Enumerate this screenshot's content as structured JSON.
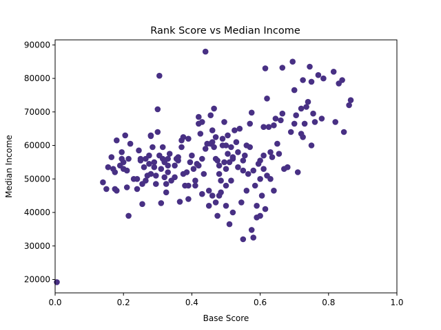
{
  "chart_data": {
    "type": "scatter",
    "title": "Rank Score vs Median Income",
    "xlabel": "Base Score",
    "ylabel": "Median Income",
    "xlim": [
      0,
      1
    ],
    "ylim": [
      16000,
      91500
    ],
    "xticks": [
      0.0,
      0.2,
      0.4,
      0.6,
      0.8,
      1.0
    ],
    "xtick_labels": [
      "0.0",
      "0.2",
      "0.4",
      "0.6",
      "0.8",
      "1.0"
    ],
    "yticks": [
      20000,
      30000,
      40000,
      50000,
      60000,
      70000,
      80000,
      90000
    ],
    "ytick_labels": [
      "20000",
      "30000",
      "40000",
      "50000",
      "60000",
      "70000",
      "80000",
      "90000"
    ],
    "grid": false,
    "marker_color": "#483084",
    "points": [
      [
        0.005,
        19200
      ],
      [
        0.14,
        49000
      ],
      [
        0.15,
        47000
      ],
      [
        0.155,
        53500
      ],
      [
        0.165,
        56500
      ],
      [
        0.17,
        53000
      ],
      [
        0.175,
        47000
      ],
      [
        0.175,
        52000
      ],
      [
        0.18,
        61500
      ],
      [
        0.18,
        46500
      ],
      [
        0.19,
        54000
      ],
      [
        0.195,
        56000
      ],
      [
        0.195,
        58000
      ],
      [
        0.2,
        53000
      ],
      [
        0.205,
        63000
      ],
      [
        0.21,
        47500
      ],
      [
        0.21,
        52500
      ],
      [
        0.215,
        39000
      ],
      [
        0.215,
        56000
      ],
      [
        0.22,
        60500
      ],
      [
        0.24,
        47000
      ],
      [
        0.24,
        50000
      ],
      [
        0.245,
        58500
      ],
      [
        0.25,
        56000
      ],
      [
        0.25,
        55500
      ],
      [
        0.255,
        48500
      ],
      [
        0.255,
        42500
      ],
      [
        0.26,
        53500
      ],
      [
        0.265,
        56000
      ],
      [
        0.265,
        49500
      ],
      [
        0.27,
        51000
      ],
      [
        0.275,
        54500
      ],
      [
        0.275,
        57000
      ],
      [
        0.28,
        63000
      ],
      [
        0.28,
        51500
      ],
      [
        0.285,
        59500
      ],
      [
        0.29,
        55000
      ],
      [
        0.29,
        53500
      ],
      [
        0.295,
        51000
      ],
      [
        0.295,
        48500
      ],
      [
        0.3,
        64000
      ],
      [
        0.3,
        70800
      ],
      [
        0.305,
        80800
      ],
      [
        0.305,
        57000
      ],
      [
        0.31,
        53000
      ],
      [
        0.31,
        42800
      ],
      [
        0.315,
        56000
      ],
      [
        0.315,
        59500
      ],
      [
        0.32,
        55000
      ],
      [
        0.32,
        50500
      ],
      [
        0.325,
        46000
      ],
      [
        0.325,
        48500
      ],
      [
        0.33,
        54000
      ],
      [
        0.33,
        52000
      ],
      [
        0.335,
        57500
      ],
      [
        0.34,
        49500
      ],
      [
        0.35,
        50500
      ],
      [
        0.35,
        54000
      ],
      [
        0.355,
        56000
      ],
      [
        0.36,
        55500
      ],
      [
        0.365,
        43200
      ],
      [
        0.37,
        59500
      ],
      [
        0.37,
        61500
      ],
      [
        0.375,
        62500
      ],
      [
        0.375,
        51500
      ],
      [
        0.38,
        48000
      ],
      [
        0.385,
        52000
      ],
      [
        0.39,
        44000
      ],
      [
        0.39,
        48000
      ],
      [
        0.395,
        55000
      ],
      [
        0.4,
        57000
      ],
      [
        0.405,
        53000
      ],
      [
        0.41,
        49500
      ],
      [
        0.41,
        48000
      ],
      [
        0.415,
        54500
      ],
      [
        0.42,
        68500
      ],
      [
        0.42,
        66500
      ],
      [
        0.425,
        63500
      ],
      [
        0.43,
        56000
      ],
      [
        0.43,
        45500
      ],
      [
        0.435,
        51500
      ],
      [
        0.44,
        88000
      ],
      [
        0.44,
        59000
      ],
      [
        0.445,
        60500
      ],
      [
        0.45,
        46500
      ],
      [
        0.45,
        42000
      ],
      [
        0.455,
        69000
      ],
      [
        0.455,
        60500
      ],
      [
        0.46,
        64500
      ],
      [
        0.46,
        61000
      ],
      [
        0.465,
        71000
      ],
      [
        0.465,
        59500
      ],
      [
        0.47,
        62500
      ],
      [
        0.47,
        56000
      ],
      [
        0.47,
        43000
      ],
      [
        0.475,
        55500
      ],
      [
        0.475,
        39000
      ],
      [
        0.48,
        54000
      ],
      [
        0.48,
        51500
      ],
      [
        0.485,
        49500
      ],
      [
        0.485,
        46000
      ],
      [
        0.49,
        62000
      ],
      [
        0.49,
        60000
      ],
      [
        0.495,
        67000
      ],
      [
        0.495,
        55000
      ],
      [
        0.5,
        53000
      ],
      [
        0.5,
        48000
      ],
      [
        0.5,
        42000
      ],
      [
        0.505,
        63000
      ],
      [
        0.505,
        57500
      ],
      [
        0.51,
        55000
      ],
      [
        0.51,
        36500
      ],
      [
        0.515,
        59500
      ],
      [
        0.515,
        49500
      ],
      [
        0.52,
        56500
      ],
      [
        0.52,
        40000
      ],
      [
        0.525,
        64500
      ],
      [
        0.53,
        61000
      ],
      [
        0.535,
        58000
      ],
      [
        0.535,
        53500
      ],
      [
        0.54,
        65000
      ],
      [
        0.545,
        43000
      ],
      [
        0.55,
        55500
      ],
      [
        0.55,
        32000
      ],
      [
        0.555,
        57000
      ],
      [
        0.56,
        46500
      ],
      [
        0.565,
        51500
      ],
      [
        0.57,
        66500
      ],
      [
        0.57,
        59500
      ],
      [
        0.575,
        69800
      ],
      [
        0.575,
        34800
      ],
      [
        0.58,
        32500
      ],
      [
        0.58,
        52500
      ],
      [
        0.585,
        48000
      ],
      [
        0.59,
        38500
      ],
      [
        0.595,
        54500
      ],
      [
        0.6,
        55500
      ],
      [
        0.6,
        50000
      ],
      [
        0.605,
        45000
      ],
      [
        0.61,
        65500
      ],
      [
        0.61,
        53000
      ],
      [
        0.615,
        83000
      ],
      [
        0.615,
        41000
      ],
      [
        0.62,
        74000
      ],
      [
        0.625,
        65500
      ],
      [
        0.63,
        58000
      ],
      [
        0.63,
        50000
      ],
      [
        0.635,
        56500
      ],
      [
        0.64,
        66000
      ],
      [
        0.64,
        46500
      ],
      [
        0.645,
        68000
      ],
      [
        0.65,
        60500
      ],
      [
        0.655,
        57500
      ],
      [
        0.66,
        67500
      ],
      [
        0.665,
        69500
      ],
      [
        0.665,
        83200
      ],
      [
        0.68,
        53500
      ],
      [
        0.69,
        64000
      ],
      [
        0.695,
        85000
      ],
      [
        0.7,
        76500
      ],
      [
        0.7,
        66500
      ],
      [
        0.705,
        69000
      ],
      [
        0.71,
        52000
      ],
      [
        0.72,
        63500
      ],
      [
        0.725,
        79500
      ],
      [
        0.725,
        62500
      ],
      [
        0.73,
        66500
      ],
      [
        0.735,
        71500
      ],
      [
        0.74,
        73000
      ],
      [
        0.745,
        83500
      ],
      [
        0.75,
        79000
      ],
      [
        0.75,
        60000
      ],
      [
        0.755,
        69500
      ],
      [
        0.76,
        67000
      ],
      [
        0.77,
        81000
      ],
      [
        0.78,
        68000
      ],
      [
        0.785,
        80000
      ],
      [
        0.815,
        82000
      ],
      [
        0.82,
        67000
      ],
      [
        0.83,
        78500
      ],
      [
        0.84,
        79500
      ],
      [
        0.845,
        64000
      ],
      [
        0.86,
        72000
      ],
      [
        0.865,
        73500
      ],
      [
        0.43,
        67000
      ],
      [
        0.46,
        45000
      ],
      [
        0.48,
        45000
      ],
      [
        0.52,
        56000
      ],
      [
        0.56,
        60000
      ],
      [
        0.59,
        42000
      ],
      [
        0.6,
        39000
      ],
      [
        0.62,
        51000
      ],
      [
        0.67,
        53000
      ],
      [
        0.72,
        71000
      ],
      [
        0.39,
        62000
      ],
      [
        0.36,
        56500
      ],
      [
        0.28,
        62800
      ],
      [
        0.23,
        50000
      ],
      [
        0.2,
        55000
      ],
      [
        0.33,
        56000
      ],
      [
        0.42,
        54000
      ],
      [
        0.5,
        60000
      ],
      [
        0.55,
        52500
      ],
      [
        0.61,
        57000
      ]
    ]
  }
}
